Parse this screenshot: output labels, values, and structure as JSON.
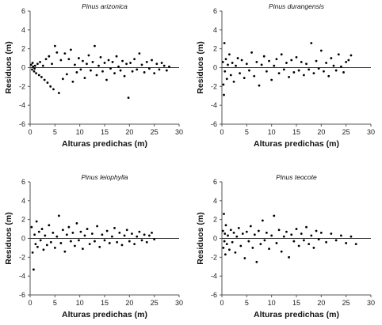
{
  "chart_data": [
    {
      "type": "scatter",
      "title": "Pinus arizonica",
      "xlabel": "Alturas predichas (m)",
      "ylabel": "Residuos (m)",
      "xlim": [
        0,
        30
      ],
      "ylim": [
        -6,
        6
      ],
      "xticks": [
        0,
        5,
        10,
        15,
        20,
        25,
        30
      ],
      "yticks": [
        -6,
        -4,
        -2,
        0,
        2,
        4,
        6
      ],
      "reference_line": 0,
      "points": [
        [
          0.2,
          0.3
        ],
        [
          0.4,
          -0.2
        ],
        [
          0.6,
          0.1
        ],
        [
          0.8,
          -0.4
        ],
        [
          1.0,
          0.2
        ],
        [
          1.2,
          -0.6
        ],
        [
          0.5,
          0.5
        ],
        [
          0.9,
          -0.1
        ],
        [
          1.5,
          0.4
        ],
        [
          1.8,
          -0.8
        ],
        [
          2.0,
          0.6
        ],
        [
          2.3,
          -1.0
        ],
        [
          2.6,
          0.2
        ],
        [
          2.9,
          -1.3
        ],
        [
          3.2,
          0.9
        ],
        [
          3.5,
          -1.6
        ],
        [
          3.8,
          1.2
        ],
        [
          4.1,
          -2.0
        ],
        [
          4.4,
          0.4
        ],
        [
          4.7,
          -2.3
        ],
        [
          5.0,
          2.3
        ],
        [
          5.4,
          1.6
        ],
        [
          5.8,
          -2.7
        ],
        [
          6.2,
          0.8
        ],
        [
          6.6,
          -1.2
        ],
        [
          7.0,
          1.5
        ],
        [
          7.4,
          -0.7
        ],
        [
          7.8,
          0.9
        ],
        [
          8.2,
          1.9
        ],
        [
          8.6,
          -1.5
        ],
        [
          9.0,
          0.3
        ],
        [
          9.4,
          -0.5
        ],
        [
          9.8,
          1.0
        ],
        [
          10.2,
          -0.2
        ],
        [
          10.6,
          0.7
        ],
        [
          11.0,
          -1.1
        ],
        [
          11.4,
          0.4
        ],
        [
          11.8,
          1.3
        ],
        [
          12.2,
          -0.3
        ],
        [
          12.6,
          0.6
        ],
        [
          13.0,
          2.3
        ],
        [
          13.4,
          -0.8
        ],
        [
          13.8,
          0.2
        ],
        [
          14.2,
          1.1
        ],
        [
          14.6,
          -0.4
        ],
        [
          15.0,
          0.5
        ],
        [
          15.4,
          -1.3
        ],
        [
          15.8,
          0.8
        ],
        [
          16.2,
          -0.1
        ],
        [
          16.6,
          0.6
        ],
        [
          17.0,
          -0.6
        ],
        [
          17.4,
          1.2
        ],
        [
          17.8,
          0.1
        ],
        [
          18.2,
          -0.3
        ],
        [
          18.6,
          0.7
        ],
        [
          19.0,
          -0.9
        ],
        [
          19.4,
          0.4
        ],
        [
          19.8,
          -3.2
        ],
        [
          20.2,
          0.5
        ],
        [
          20.6,
          -0.4
        ],
        [
          21.0,
          0.9
        ],
        [
          21.5,
          -0.2
        ],
        [
          22.0,
          1.5
        ],
        [
          22.5,
          0.3
        ],
        [
          23.0,
          -0.5
        ],
        [
          23.5,
          0.6
        ],
        [
          24.0,
          -0.1
        ],
        [
          24.5,
          0.8
        ],
        [
          25.0,
          -0.6
        ],
        [
          25.5,
          0.4
        ],
        [
          26.0,
          -0.2
        ],
        [
          26.5,
          0.5
        ],
        [
          27.0,
          0.2
        ],
        [
          27.5,
          -0.3
        ],
        [
          28.0,
          0.1
        ]
      ]
    },
    {
      "type": "scatter",
      "title": "Pinus durangensis",
      "xlabel": "Alturas predichas (m)",
      "ylabel": "Residuos (m)",
      "xlim": [
        0,
        30
      ],
      "ylim": [
        -6,
        6
      ],
      "xticks": [
        0,
        5,
        10,
        15,
        20,
        25,
        30
      ],
      "yticks": [
        -6,
        -4,
        -2,
        0,
        2,
        4,
        6
      ],
      "reference_line": 0,
      "points": [
        [
          0.2,
          0.6
        ],
        [
          0.3,
          -1.8
        ],
        [
          0.4,
          -2.9
        ],
        [
          0.5,
          2.6
        ],
        [
          0.6,
          -0.4
        ],
        [
          0.8,
          0.9
        ],
        [
          1.0,
          -1.2
        ],
        [
          1.2,
          0.3
        ],
        [
          1.5,
          1.4
        ],
        [
          1.8,
          -0.8
        ],
        [
          2.1,
          0.5
        ],
        [
          2.4,
          -1.5
        ],
        [
          2.8,
          0.2
        ],
        [
          3.2,
          1.0
        ],
        [
          3.6,
          -0.6
        ],
        [
          4.0,
          0.8
        ],
        [
          4.5,
          -1.1
        ],
        [
          5.0,
          0.4
        ],
        [
          5.5,
          -0.3
        ],
        [
          6.0,
          1.6
        ],
        [
          6.5,
          -0.9
        ],
        [
          7.0,
          0.6
        ],
        [
          7.5,
          -1.9
        ],
        [
          8.0,
          0.3
        ],
        [
          8.5,
          1.2
        ],
        [
          9.0,
          -0.4
        ],
        [
          9.5,
          0.7
        ],
        [
          10.0,
          -1.3
        ],
        [
          10.5,
          0.2
        ],
        [
          11.0,
          0.9
        ],
        [
          11.5,
          -0.6
        ],
        [
          12.0,
          1.4
        ],
        [
          12.5,
          -0.2
        ],
        [
          13.0,
          0.5
        ],
        [
          13.5,
          -1.0
        ],
        [
          14.0,
          0.8
        ],
        [
          14.5,
          -0.5
        ],
        [
          15.0,
          1.1
        ],
        [
          15.5,
          -0.3
        ],
        [
          16.0,
          0.6
        ],
        [
          16.5,
          -0.8
        ],
        [
          17.0,
          0.4
        ],
        [
          17.5,
          -0.2
        ],
        [
          18.0,
          2.6
        ],
        [
          18.5,
          -0.6
        ],
        [
          19.0,
          0.7
        ],
        [
          19.5,
          -0.1
        ],
        [
          20.0,
          1.8
        ],
        [
          20.5,
          -0.4
        ],
        [
          21.0,
          0.5
        ],
        [
          21.5,
          -0.9
        ],
        [
          22.0,
          1.0
        ],
        [
          22.5,
          0.2
        ],
        [
          23.0,
          -0.3
        ],
        [
          23.5,
          1.4
        ],
        [
          24.0,
          0.1
        ],
        [
          24.5,
          -0.5
        ],
        [
          25.0,
          0.6
        ],
        [
          25.5,
          0.8
        ],
        [
          26.0,
          1.3
        ]
      ]
    },
    {
      "type": "scatter",
      "title": "Pinus leiophylla",
      "xlabel": "Alturas predichas (m)",
      "ylabel": "Residuos (m)",
      "xlim": [
        0,
        30
      ],
      "ylim": [
        -6,
        6
      ],
      "xticks": [
        0,
        5,
        10,
        15,
        20,
        25,
        30
      ],
      "yticks": [
        -6,
        -4,
        -2,
        0,
        2,
        4,
        6
      ],
      "reference_line": 0,
      "points": [
        [
          0.3,
          1.2
        ],
        [
          0.5,
          -1.5
        ],
        [
          0.7,
          -3.3
        ],
        [
          0.9,
          0.4
        ],
        [
          1.1,
          -0.6
        ],
        [
          1.3,
          1.8
        ],
        [
          1.5,
          -0.9
        ],
        [
          1.8,
          0.7
        ],
        [
          2.1,
          -0.2
        ],
        [
          2.4,
          1.0
        ],
        [
          2.7,
          -1.2
        ],
        [
          3.0,
          0.3
        ],
        [
          3.4,
          -0.7
        ],
        [
          3.8,
          1.4
        ],
        [
          4.2,
          -0.4
        ],
        [
          4.6,
          0.6
        ],
        [
          5.0,
          -1.0
        ],
        [
          5.4,
          0.2
        ],
        [
          5.8,
          2.4
        ],
        [
          6.2,
          -0.5
        ],
        [
          6.6,
          0.9
        ],
        [
          7.0,
          -1.4
        ],
        [
          7.4,
          0.4
        ],
        [
          7.8,
          1.2
        ],
        [
          8.2,
          -0.3
        ],
        [
          8.6,
          0.6
        ],
        [
          9.0,
          -0.8
        ],
        [
          9.4,
          1.6
        ],
        [
          9.8,
          -0.2
        ],
        [
          10.2,
          0.7
        ],
        [
          10.6,
          -1.1
        ],
        [
          11.0,
          0.3
        ],
        [
          11.5,
          1.0
        ],
        [
          12.0,
          -0.6
        ],
        [
          12.5,
          0.5
        ],
        [
          13.0,
          -0.3
        ],
        [
          13.5,
          1.3
        ],
        [
          14.0,
          -0.9
        ],
        [
          14.5,
          0.4
        ],
        [
          15.0,
          -0.2
        ],
        [
          15.5,
          0.8
        ],
        [
          16.0,
          -0.5
        ],
        [
          16.5,
          0.2
        ],
        [
          17.0,
          1.1
        ],
        [
          17.5,
          -0.4
        ],
        [
          18.0,
          0.6
        ],
        [
          18.5,
          -0.7
        ],
        [
          19.0,
          0.3
        ],
        [
          19.5,
          0.9
        ],
        [
          20.0,
          -0.3
        ],
        [
          20.5,
          0.5
        ],
        [
          21.0,
          -0.6
        ],
        [
          21.5,
          0.2
        ],
        [
          22.0,
          0.7
        ],
        [
          22.5,
          -0.2
        ],
        [
          23.0,
          0.4
        ],
        [
          23.5,
          -0.4
        ],
        [
          24.0,
          0.3
        ],
        [
          24.5,
          0.6
        ],
        [
          25.0,
          -0.1
        ]
      ]
    },
    {
      "type": "scatter",
      "title": "Pinus teocote",
      "xlabel": "Alturas predichas (m)",
      "ylabel": "Residuos (m)",
      "xlim": [
        0,
        30
      ],
      "ylim": [
        -6,
        6
      ],
      "xticks": [
        0,
        5,
        10,
        15,
        20,
        25,
        30
      ],
      "yticks": [
        -6,
        -4,
        -2,
        0,
        2,
        4,
        6
      ],
      "reference_line": 0,
      "points": [
        [
          0.2,
          0.8
        ],
        [
          0.3,
          -1.0
        ],
        [
          0.4,
          2.6
        ],
        [
          0.5,
          -0.3
        ],
        [
          0.6,
          0.5
        ],
        [
          0.7,
          -1.7
        ],
        [
          0.8,
          1.4
        ],
        [
          1.0,
          -0.6
        ],
        [
          1.2,
          0.3
        ],
        [
          1.5,
          -1.2
        ],
        [
          1.8,
          0.9
        ],
        [
          2.1,
          -0.4
        ],
        [
          2.4,
          0.6
        ],
        [
          2.7,
          -1.5
        ],
        [
          3.0,
          0.2
        ],
        [
          3.4,
          1.1
        ],
        [
          3.8,
          -0.8
        ],
        [
          4.2,
          0.5
        ],
        [
          4.6,
          -2.1
        ],
        [
          5.0,
          0.7
        ],
        [
          5.4,
          -0.3
        ],
        [
          5.8,
          1.3
        ],
        [
          6.2,
          -1.0
        ],
        [
          6.6,
          0.4
        ],
        [
          7.0,
          -2.5
        ],
        [
          7.4,
          0.8
        ],
        [
          7.8,
          -0.6
        ],
        [
          8.2,
          1.9
        ],
        [
          8.6,
          -0.2
        ],
        [
          9.0,
          0.6
        ],
        [
          9.5,
          -1.1
        ],
        [
          10.0,
          0.3
        ],
        [
          10.5,
          2.4
        ],
        [
          11.0,
          -0.5
        ],
        [
          11.5,
          0.9
        ],
        [
          12.0,
          -1.4
        ],
        [
          12.5,
          0.2
        ],
        [
          13.0,
          0.7
        ],
        [
          13.5,
          -2.0
        ],
        [
          14.0,
          0.4
        ],
        [
          14.5,
          -0.3
        ],
        [
          15.0,
          1.0
        ],
        [
          15.5,
          -0.8
        ],
        [
          16.0,
          0.5
        ],
        [
          16.5,
          -0.2
        ],
        [
          17.0,
          1.2
        ],
        [
          17.5,
          -0.6
        ],
        [
          18.0,
          0.3
        ],
        [
          18.5,
          -1.0
        ],
        [
          19.0,
          0.8
        ],
        [
          19.5,
          -0.1
        ],
        [
          20.0,
          0.6
        ],
        [
          21.0,
          -0.4
        ],
        [
          22.0,
          0.5
        ],
        [
          23.0,
          -0.2
        ],
        [
          24.0,
          0.3
        ],
        [
          25.0,
          -0.5
        ],
        [
          26.0,
          0.2
        ],
        [
          27.0,
          -0.6
        ]
      ]
    }
  ]
}
